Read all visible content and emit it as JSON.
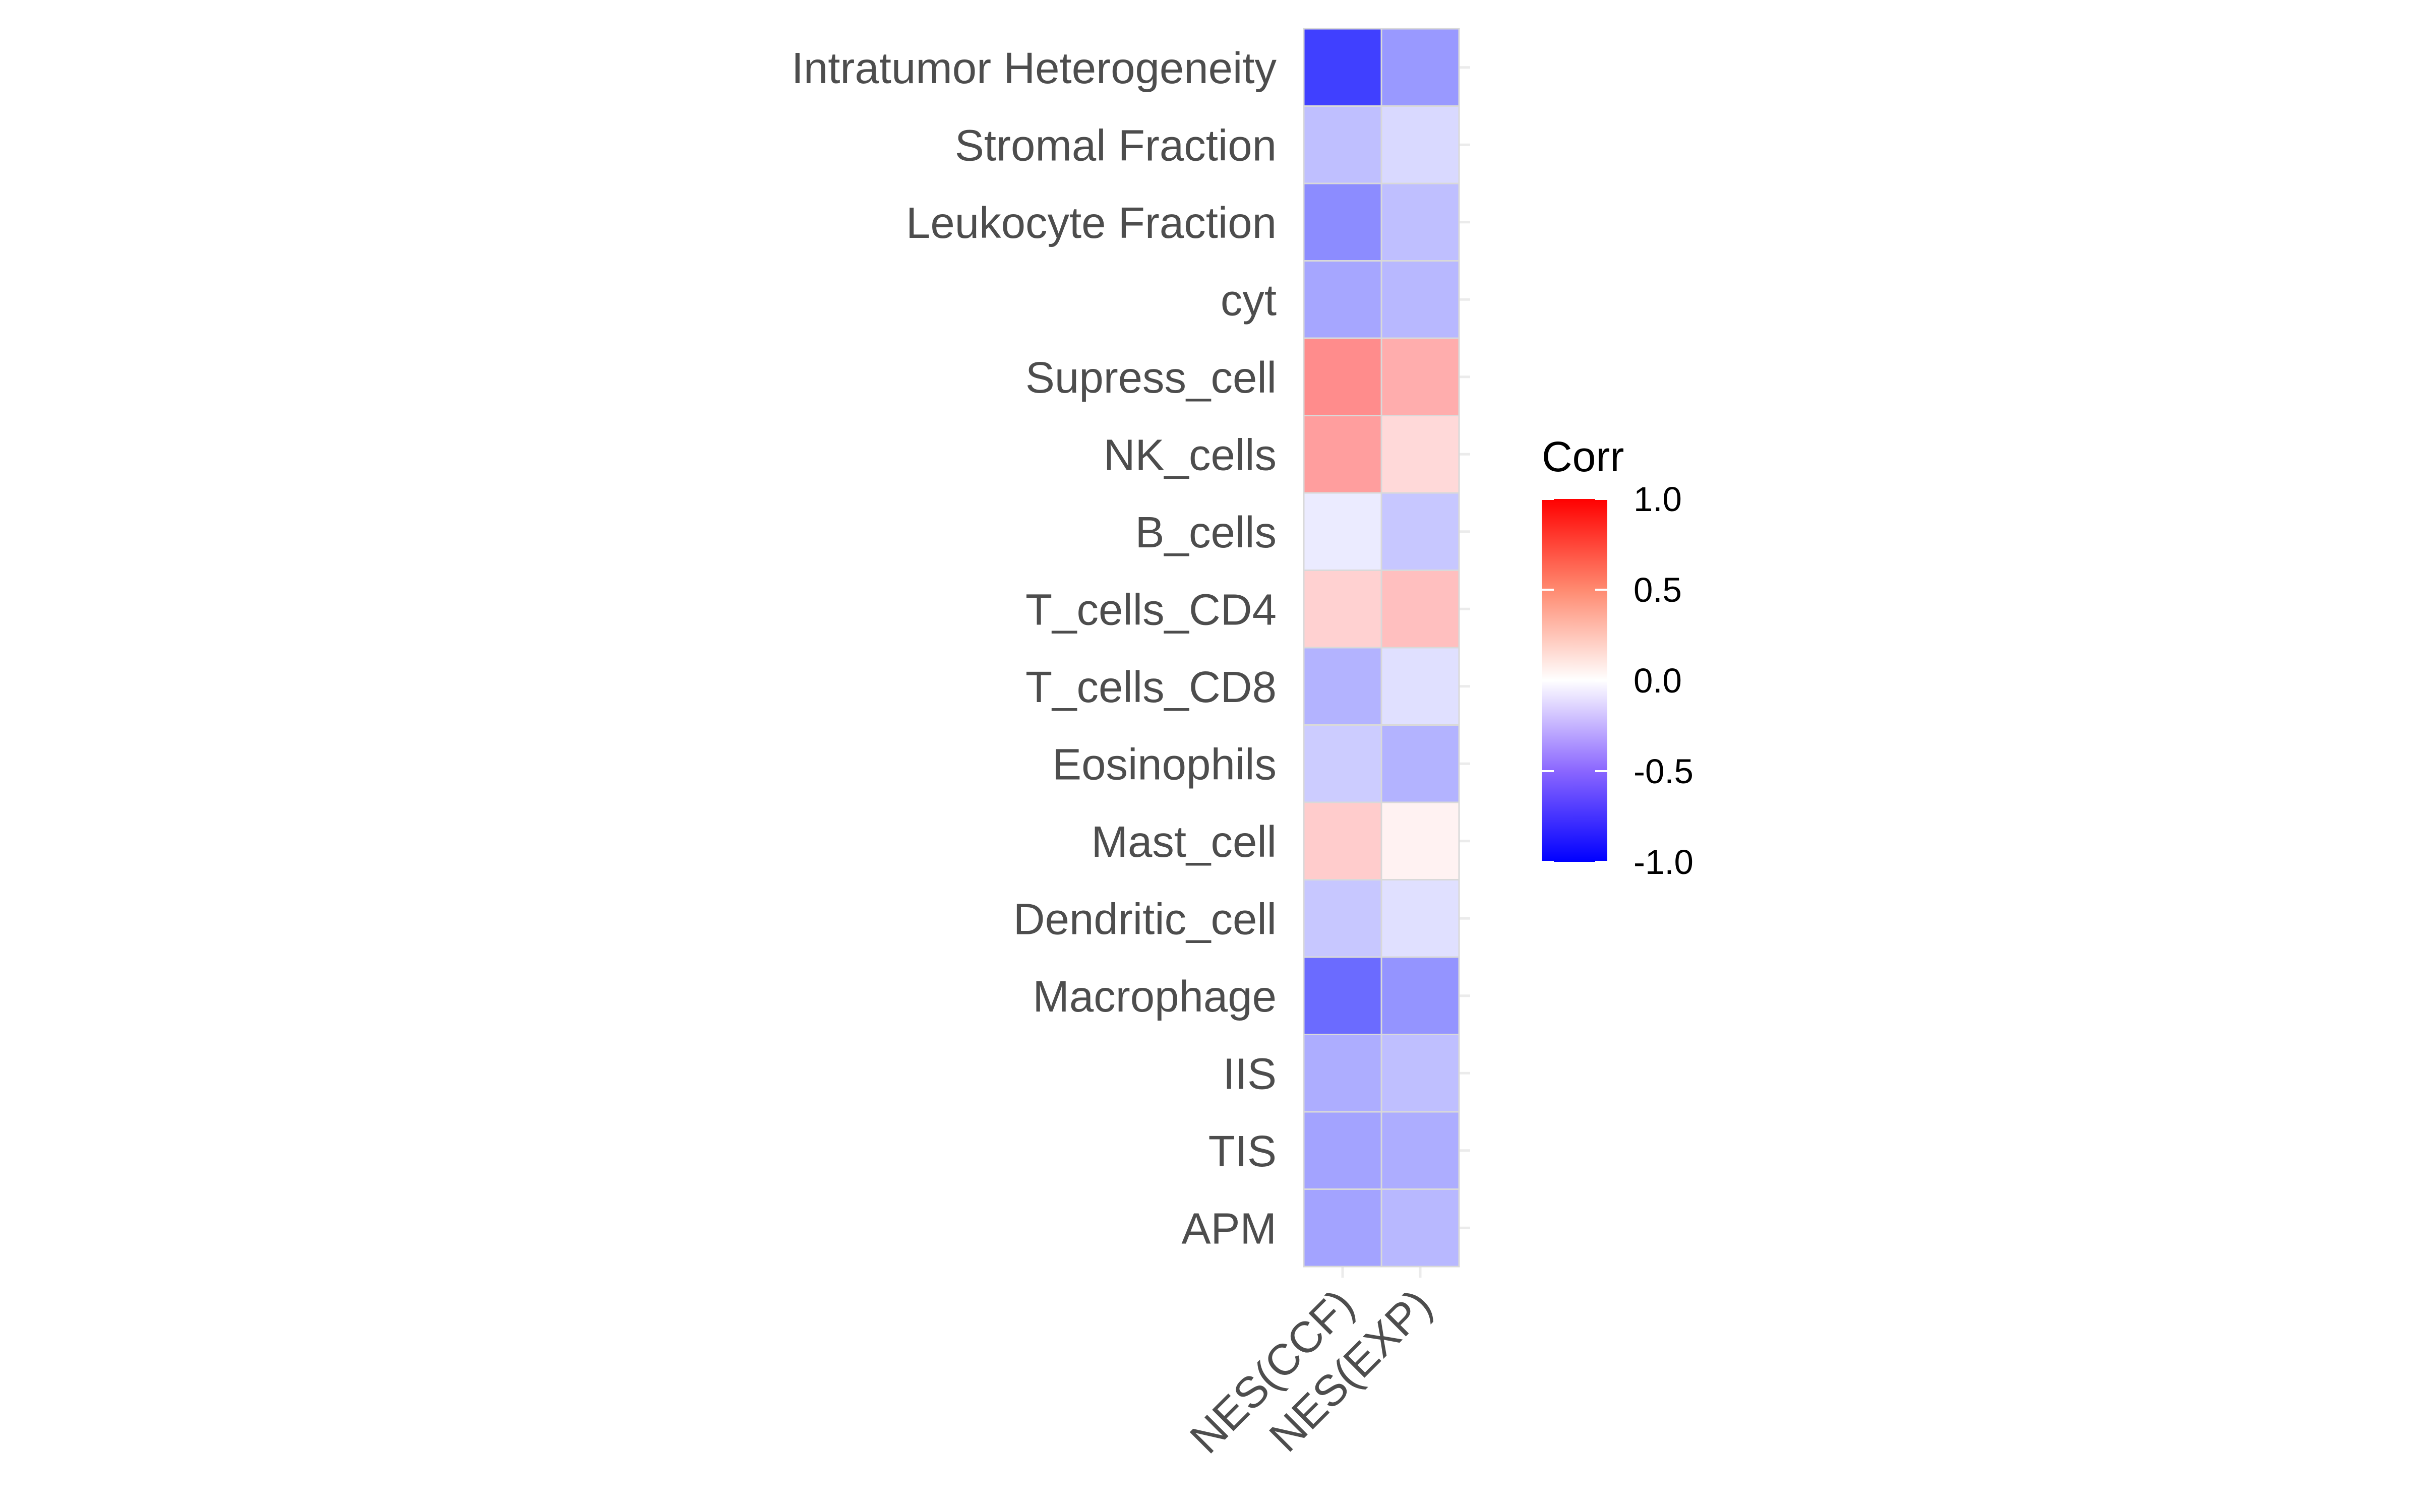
{
  "chart_data": {
    "type": "heatmap",
    "title": "",
    "xlabel": "",
    "ylabel": "",
    "columns": [
      "NES(CCF)",
      "NES(EXP)"
    ],
    "rows": [
      "Intratumor Heterogeneity",
      "Stromal Fraction",
      "Leukocyte Fraction",
      "cyt",
      "Supress_cell",
      "NK_cells",
      "B_cells",
      "T_cells_CD4",
      "T_cells_CD8",
      "Eosinophils",
      "Mast_cell",
      "Dendritic_cell",
      "Macrophage",
      "IIS",
      "TIS",
      "APM"
    ],
    "values": [
      [
        -0.75,
        -0.4
      ],
      [
        -0.25,
        -0.15
      ],
      [
        -0.45,
        -0.25
      ],
      [
        -0.35,
        -0.28
      ],
      [
        0.45,
        0.32
      ],
      [
        0.38,
        0.15
      ],
      [
        -0.08,
        -0.22
      ],
      [
        0.18,
        0.25
      ],
      [
        -0.3,
        -0.12
      ],
      [
        -0.2,
        -0.3
      ],
      [
        0.2,
        0.05
      ],
      [
        -0.22,
        -0.12
      ],
      [
        -0.58,
        -0.42
      ],
      [
        -0.32,
        -0.25
      ],
      [
        -0.36,
        -0.32
      ],
      [
        -0.36,
        -0.28
      ]
    ],
    "legend": {
      "title": "Corr",
      "ticks": [
        "1.0",
        "0.5",
        "0.0",
        "-0.5",
        "-1.0"
      ],
      "tick_values": [
        1.0,
        0.5,
        0.0,
        -0.5,
        -1.0
      ],
      "range": [
        -1.0,
        1.0
      ],
      "placement": "right"
    },
    "colors": {
      "low": "#0000ff",
      "mid": "#ffffff",
      "high": "#ff0000",
      "text": "#4d4d4d"
    }
  }
}
